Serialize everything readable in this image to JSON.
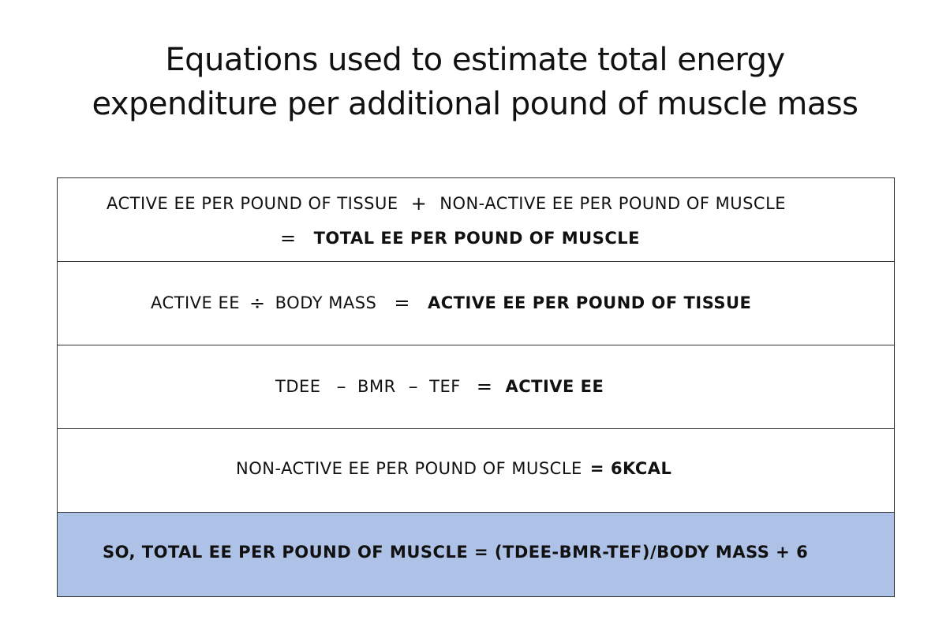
{
  "title": {
    "line1": "Equations used to estimate total energy",
    "line2": "expenditure per additional pound of muscle mass"
  },
  "rows": [
    {
      "a": "ACTIVE EE PER POUND OF TISSUE",
      "plus": "+",
      "b": "NON-ACTIVE EE PER POUND OF MUSCLE",
      "eq": "=",
      "result": "TOTAL EE PER POUND OF MUSCLE"
    },
    {
      "a": "ACTIVE EE",
      "div": "÷",
      "b": "BODY MASS",
      "eq": "=",
      "result": "ACTIVE EE PER POUND OF TISSUE"
    },
    {
      "a": "TDEE",
      "minus1": "–",
      "b": "BMR",
      "minus2": "–",
      "c": "TEF",
      "eq": "=",
      "result": "ACTIVE EE"
    },
    {
      "a": "NON-ACTIVE EE PER POUND OF MUSCLE",
      "eq": "=",
      "result": "6KCAL"
    },
    {
      "text": "SO, TOTAL EE PER POUND OF MUSCLE = (TDEE-BMR-TEF)/BODY MASS + 6"
    }
  ],
  "colors": {
    "highlight": "#aec2e7",
    "border": "#333333"
  }
}
